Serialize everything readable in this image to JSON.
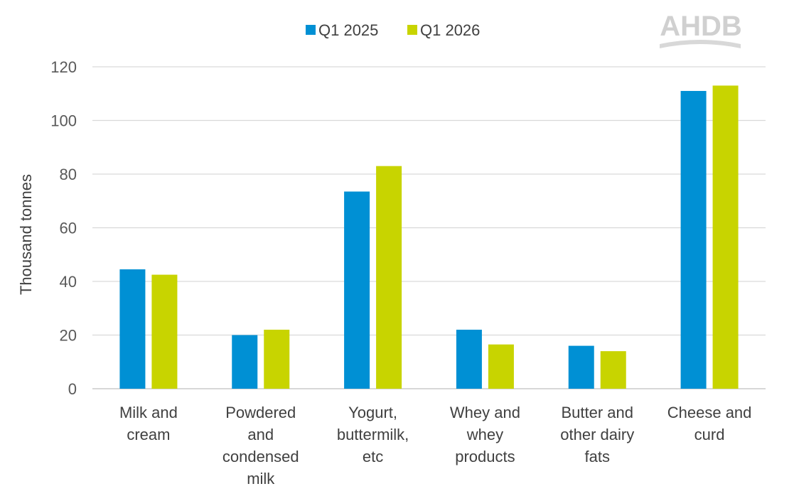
{
  "logo": {
    "text": "AHDB"
  },
  "chart_data": {
    "type": "bar",
    "title": "",
    "xlabel": "",
    "ylabel": "Thousand tonnes",
    "ylim": [
      0,
      120
    ],
    "yticks": [
      0,
      20,
      40,
      60,
      80,
      100,
      120
    ],
    "grid": true,
    "legend_position": "top",
    "categories": [
      [
        "Milk and",
        "cream"
      ],
      [
        "Powdered",
        "and",
        "condensed",
        "milk"
      ],
      [
        "Yogurt,",
        "buttermilk,",
        "etc"
      ],
      [
        "Whey and",
        "whey",
        "products"
      ],
      [
        "Butter and",
        "other dairy",
        "fats"
      ],
      [
        "Cheese and",
        "curd"
      ]
    ],
    "series": [
      {
        "name": "Q1 2025",
        "color": "#0090d4",
        "values": [
          44.5,
          20,
          73.5,
          22,
          16,
          111
        ]
      },
      {
        "name": "Q1 2026",
        "color": "#c8d400",
        "values": [
          42.5,
          22,
          83,
          16.5,
          14,
          113
        ]
      }
    ]
  }
}
